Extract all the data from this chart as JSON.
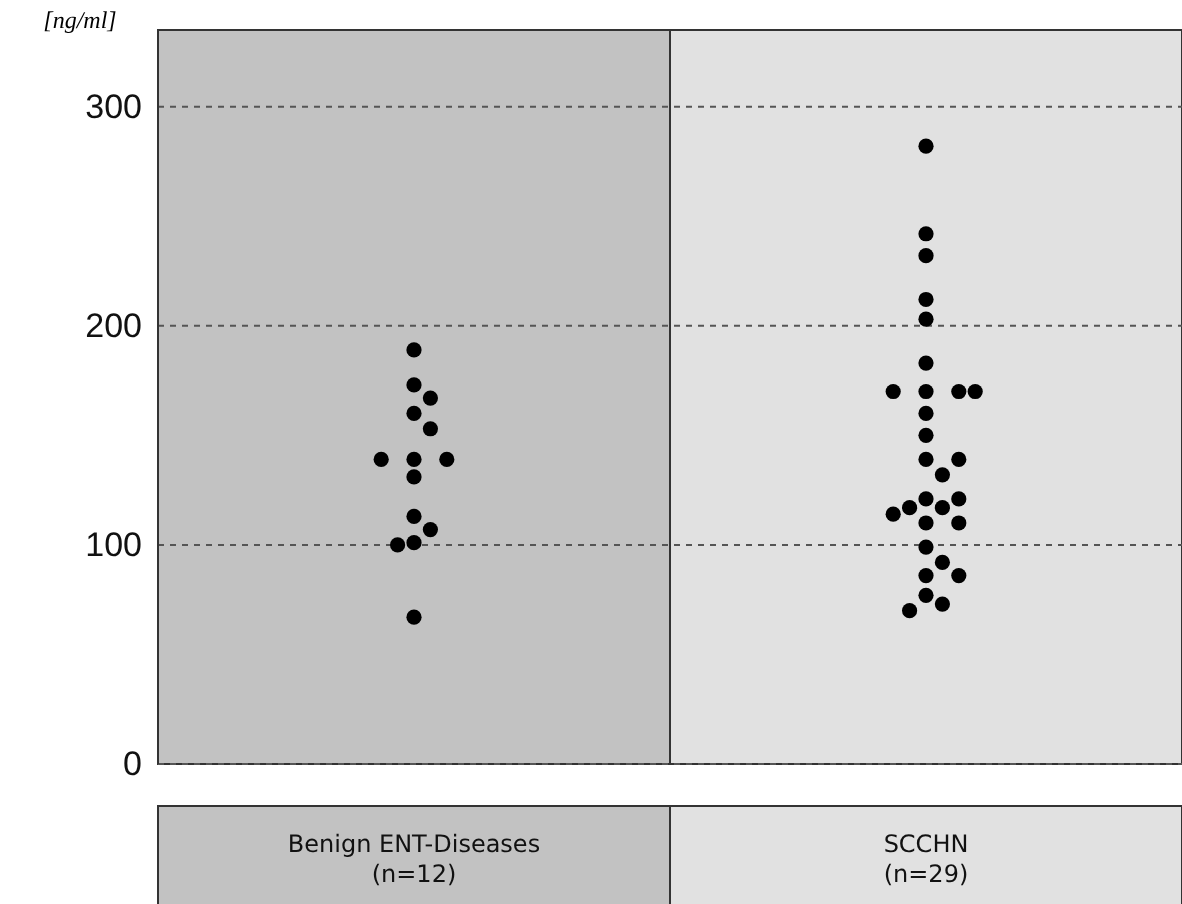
{
  "chart_data": {
    "type": "scatter",
    "ylabel": "[ng/ml]",
    "categories": [
      "Benign ENT-Diseases\n(n=12)",
      "SCCHN\n(n=29)"
    ],
    "series": [
      {
        "color": "#000000",
        "x": [
          "Benign ENT-Diseases\n(n=12)",
          "Benign ENT-Diseases\n(n=12)",
          "Benign ENT-Diseases\n(n=12)",
          "Benign ENT-Diseases\n(n=12)",
          "Benign ENT-Diseases\n(n=12)",
          "Benign ENT-Diseases\n(n=12)",
          "Benign ENT-Diseases\n(n=12)",
          "Benign ENT-Diseases\n(n=12)",
          "Benign ENT-Diseases\n(n=12)",
          "Benign ENT-Diseases\n(n=12)",
          "Benign ENT-Diseases\n(n=12)",
          "Benign ENT-Diseases\n(n=12)",
          "Benign ENT-Diseases\n(n=12)",
          "Benign ENT-Diseases\n(n=12)"
        ],
        "values": [
          189,
          173,
          167,
          160,
          153,
          139,
          139,
          139,
          131,
          113,
          107,
          101,
          100,
          67
        ]
      },
      {
        "color": "#000000",
        "x": [
          "SCCHN\n(n=29)",
          "SCCHN\n(n=29)",
          "SCCHN\n(n=29)",
          "SCCHN\n(n=29)",
          "SCCHN\n(n=29)",
          "SCCHN\n(n=29)",
          "SCCHN\n(n=29)",
          "SCCHN\n(n=29)",
          "SCCHN\n(n=29)",
          "SCCHN\n(n=29)",
          "SCCHN\n(n=29)",
          "SCCHN\n(n=29)",
          "SCCHN\n(n=29)",
          "SCCHN\n(n=29)",
          "SCCHN\n(n=29)",
          "SCCHN\n(n=29)",
          "SCCHN\n(n=29)",
          "SCCHN\n(n=29)",
          "SCCHN\n(n=29)",
          "SCCHN\n(n=29)",
          "SCCHN\n(n=29)",
          "SCCHN\n(n=29)",
          "SCCHN\n(n=29)",
          "SCCHN\n(n=29)",
          "SCCHN\n(n=29)",
          "SCCHN\n(n=29)",
          "SCCHN\n(n=29)",
          "SCCHN\n(n=29)",
          "SCCHN\n(n=29)"
        ],
        "values": [
          282,
          242,
          232,
          212,
          203,
          183,
          170,
          170,
          170,
          170,
          160,
          150,
          139,
          139,
          132,
          121,
          121,
          117,
          117,
          114,
          110,
          110,
          99,
          92,
          86,
          86,
          77,
          73,
          70
        ]
      }
    ],
    "bands": [
      {
        "axis": "x",
        "from": "Benign ENT-Diseases\n(n=12)",
        "to": "Benign ENT-Diseases\n(n=12)",
        "color": "#c2c2c2"
      },
      {
        "axis": "x",
        "from": "SCCHN\n(n=29)",
        "to": "SCCHN\n(n=29)",
        "color": "#e1e1e1"
      }
    ],
    "ylim": [
      0,
      335
    ],
    "yticks": [
      0,
      100,
      200,
      300
    ],
    "grid": "y",
    "marker": "circle"
  }
}
